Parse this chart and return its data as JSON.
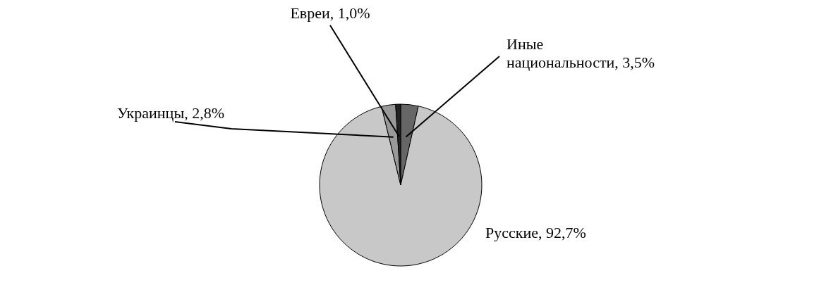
{
  "chart_data": {
    "type": "pie",
    "categories": [
      "Иные национальности",
      "Русские",
      "Украинцы",
      "Евреи"
    ],
    "values": [
      3.5,
      92.7,
      2.8,
      1.0
    ],
    "value_labels": [
      "3,5%",
      "92,7%",
      "2,8%",
      "1,0%"
    ],
    "colors": [
      "#666666",
      "#c8c8c8",
      "#999999",
      "#222222"
    ]
  }
}
